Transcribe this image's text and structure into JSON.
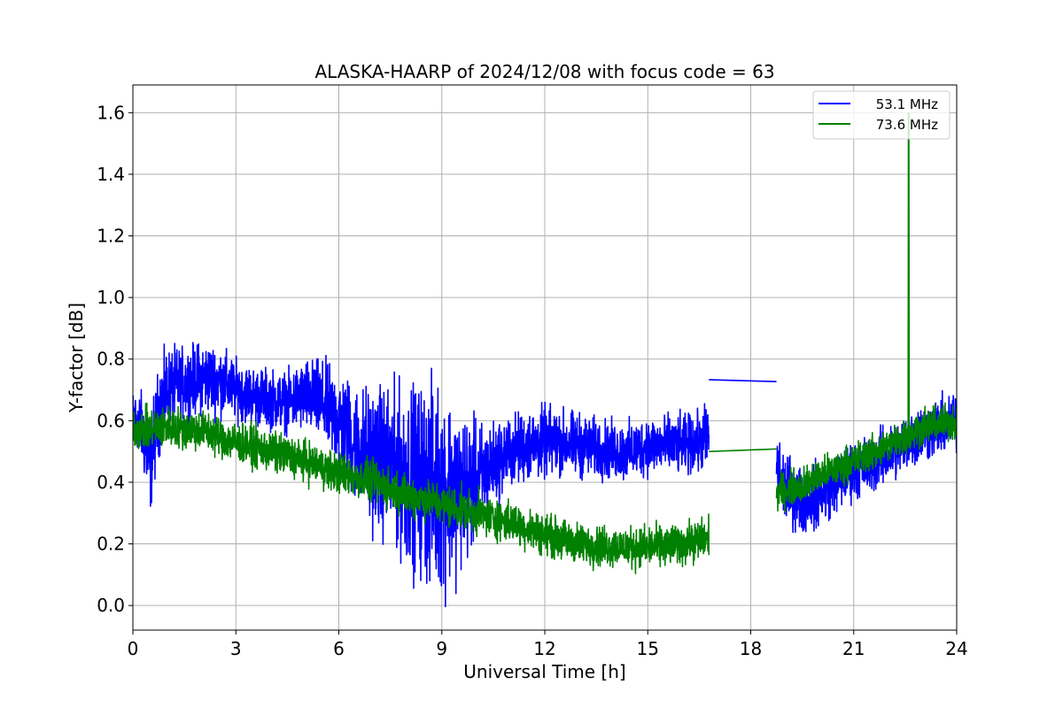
{
  "chart_data": {
    "type": "line",
    "title": "ALASKA-HAARP of 2024/12/08 with focus code = 63",
    "xlabel": "Universal Time [h]",
    "ylabel": "Y-factor [dB]",
    "xlim": [
      0,
      24
    ],
    "ylim": [
      -0.08,
      1.69
    ],
    "xticks": [
      0,
      3,
      6,
      9,
      12,
      15,
      18,
      21,
      24
    ],
    "xtick_labels": [
      "0",
      "3",
      "6",
      "9",
      "12",
      "15",
      "18",
      "21",
      "24"
    ],
    "yticks": [
      0.0,
      0.2,
      0.4,
      0.6,
      0.8,
      1.0,
      1.2,
      1.4,
      1.6
    ],
    "ytick_labels": [
      "0.0",
      "0.2",
      "0.4",
      "0.6",
      "0.8",
      "1.0",
      "1.2",
      "1.4",
      "1.6"
    ],
    "grid": true,
    "legend_position": "top-right",
    "series": [
      {
        "name": "53.1 MHz",
        "color": "#0000ff",
        "segments": [
          {
            "x": [
              0,
              0.25,
              0.5,
              0.75,
              1,
              1.5,
              2,
              2.5,
              3,
              3.5,
              4,
              4.5,
              5,
              5.5,
              6,
              6.5,
              7,
              7.5,
              8,
              8.5,
              9,
              9.5,
              10,
              10.5,
              11,
              11.5,
              12,
              12.5,
              13,
              13.5,
              14,
              14.5,
              15,
              15.5,
              16,
              16.5,
              16.78
            ],
            "center": [
              0.62,
              0.58,
              0.45,
              0.63,
              0.7,
              0.72,
              0.74,
              0.73,
              0.7,
              0.68,
              0.67,
              0.66,
              0.68,
              0.66,
              0.6,
              0.52,
              0.48,
              0.46,
              0.42,
              0.4,
              0.38,
              0.37,
              0.4,
              0.46,
              0.5,
              0.52,
              0.53,
              0.53,
              0.52,
              0.51,
              0.5,
              0.5,
              0.52,
              0.52,
              0.52,
              0.53,
              0.55
            ],
            "spread": [
              0.08,
              0.12,
              0.16,
              0.15,
              0.14,
              0.12,
              0.12,
              0.12,
              0.1,
              0.1,
              0.1,
              0.1,
              0.12,
              0.14,
              0.17,
              0.2,
              0.24,
              0.26,
              0.3,
              0.33,
              0.35,
              0.28,
              0.2,
              0.14,
              0.12,
              0.12,
              0.12,
              0.11,
              0.11,
              0.1,
              0.1,
              0.1,
              0.1,
              0.1,
              0.1,
              0.1,
              0.12
            ]
          },
          {
            "x": [
              16.78,
              18.75
            ],
            "values": [
              0.733,
              0.727
            ]
          },
          {
            "x": [
              18.75,
              19,
              19.5,
              20,
              20.5,
              21,
              21.5,
              22,
              22.5,
              23,
              23.5,
              24
            ],
            "center": [
              0.45,
              0.38,
              0.34,
              0.36,
              0.4,
              0.44,
              0.46,
              0.49,
              0.53,
              0.56,
              0.58,
              0.6
            ],
            "spread": [
              0.12,
              0.12,
              0.11,
              0.11,
              0.1,
              0.1,
              0.1,
              0.1,
              0.1,
              0.1,
              0.1,
              0.1
            ]
          }
        ]
      },
      {
        "name": "73.6 MHz",
        "color": "#008000",
        "segments": [
          {
            "x": [
              0,
              1,
              2,
              3,
              4,
              5,
              6,
              7,
              8,
              9,
              10,
              11,
              12,
              13,
              14,
              15,
              16,
              16.78
            ],
            "center": [
              0.57,
              0.58,
              0.57,
              0.53,
              0.5,
              0.47,
              0.43,
              0.4,
              0.36,
              0.33,
              0.3,
              0.27,
              0.23,
              0.2,
              0.19,
              0.19,
              0.2,
              0.22
            ],
            "spread": [
              0.07,
              0.07,
              0.07,
              0.07,
              0.07,
              0.07,
              0.07,
              0.07,
              0.07,
              0.07,
              0.07,
              0.07,
              0.07,
              0.07,
              0.07,
              0.07,
              0.07,
              0.07
            ]
          },
          {
            "x": [
              16.78,
              18.75
            ],
            "values": [
              0.5,
              0.508
            ]
          },
          {
            "x": [
              18.75,
              19.5,
              20,
              21,
              22,
              22.5,
              23,
              24
            ],
            "center": [
              0.37,
              0.39,
              0.42,
              0.47,
              0.52,
              0.55,
              0.58,
              0.6
            ],
            "spread": [
              0.06,
              0.06,
              0.06,
              0.06,
              0.06,
              0.06,
              0.06,
              0.06
            ]
          }
        ],
        "spikes": [
          {
            "x": 22.6,
            "value": 1.6
          }
        ]
      }
    ]
  }
}
